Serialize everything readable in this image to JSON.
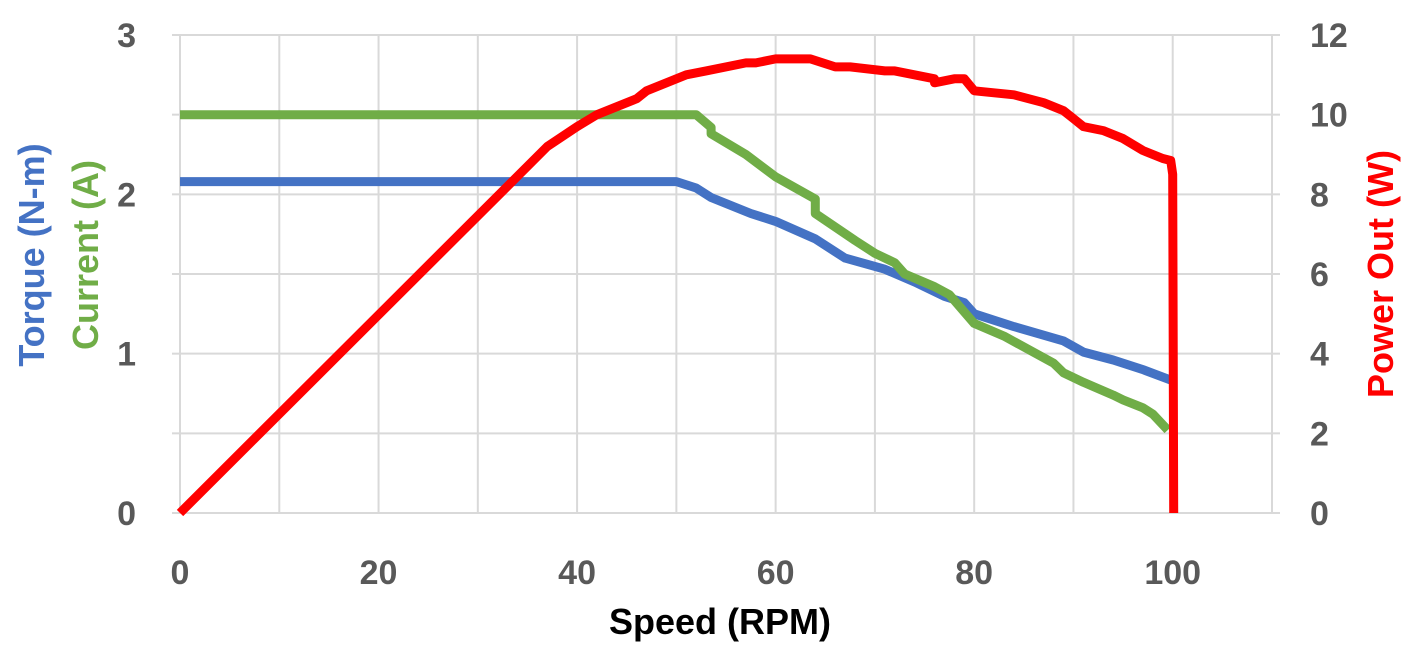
{
  "chart_data": {
    "type": "line",
    "xlabel": "Speed (RPM)",
    "ylabel_left": [
      "Torque (N-m)",
      "Current (A)"
    ],
    "ylabel_right": "Power Out (W)",
    "x_ticks": [
      "0",
      "20",
      "40",
      "60",
      "80",
      "100"
    ],
    "y_left_ticks": [
      "0",
      "1",
      "2",
      "3"
    ],
    "y_right_ticks": [
      "0",
      "2",
      "4",
      "6",
      "8",
      "10",
      "12"
    ],
    "xlim": [
      0,
      110
    ],
    "ylim_left": [
      0,
      3
    ],
    "ylim_right": [
      0,
      12
    ],
    "grid": true,
    "colors": {
      "torque": "#4472C4",
      "current": "#70AD47",
      "power": "#FF0000",
      "tick": "#595959",
      "xlabel": "#000000",
      "grid": "#D9D9D9"
    },
    "series": [
      {
        "key": "torque",
        "axis": "left",
        "x": [
          0,
          50,
          52,
          53.5,
          57.5,
          60,
          64,
          67,
          71,
          74,
          77,
          79,
          80,
          84,
          89,
          91,
          94,
          97,
          100
        ],
        "y": [
          2.08,
          2.08,
          2.04,
          1.98,
          1.88,
          1.83,
          1.72,
          1.6,
          1.53,
          1.45,
          1.36,
          1.32,
          1.25,
          1.17,
          1.08,
          1.01,
          0.96,
          0.9,
          0.83
        ]
      },
      {
        "key": "current",
        "axis": "left",
        "x": [
          0,
          52,
          53.5,
          53.5,
          57,
          60,
          64,
          64,
          68,
          70,
          72,
          73,
          76,
          77.5,
          80,
          83,
          88,
          89,
          91,
          94,
          95,
          97,
          98,
          99.5
        ],
        "y": [
          2.5,
          2.5,
          2.42,
          2.38,
          2.25,
          2.11,
          1.97,
          1.88,
          1.71,
          1.63,
          1.57,
          1.5,
          1.42,
          1.37,
          1.19,
          1.11,
          0.94,
          0.88,
          0.82,
          0.74,
          0.71,
          0.66,
          0.62,
          0.52
        ]
      },
      {
        "key": "power",
        "axis": "right",
        "x": [
          0,
          37,
          40,
          42,
          44,
          46,
          47,
          51,
          53,
          57,
          58,
          60,
          63.5,
          66,
          67.5,
          71,
          72,
          76,
          76,
          78,
          79,
          80,
          84,
          87,
          89,
          90,
          91,
          93,
          95,
          97,
          99,
          99.8,
          100,
          100.1
        ],
        "y": [
          0,
          9.2,
          9.7,
          10.0,
          10.2,
          10.4,
          10.6,
          11.0,
          11.1,
          11.3,
          11.3,
          11.4,
          11.4,
          11.2,
          11.2,
          11.1,
          11.1,
          10.9,
          10.8,
          10.9,
          10.9,
          10.6,
          10.5,
          10.3,
          10.1,
          9.9,
          9.7,
          9.6,
          9.4,
          9.1,
          8.9,
          8.85,
          8.5,
          0
        ]
      }
    ]
  }
}
